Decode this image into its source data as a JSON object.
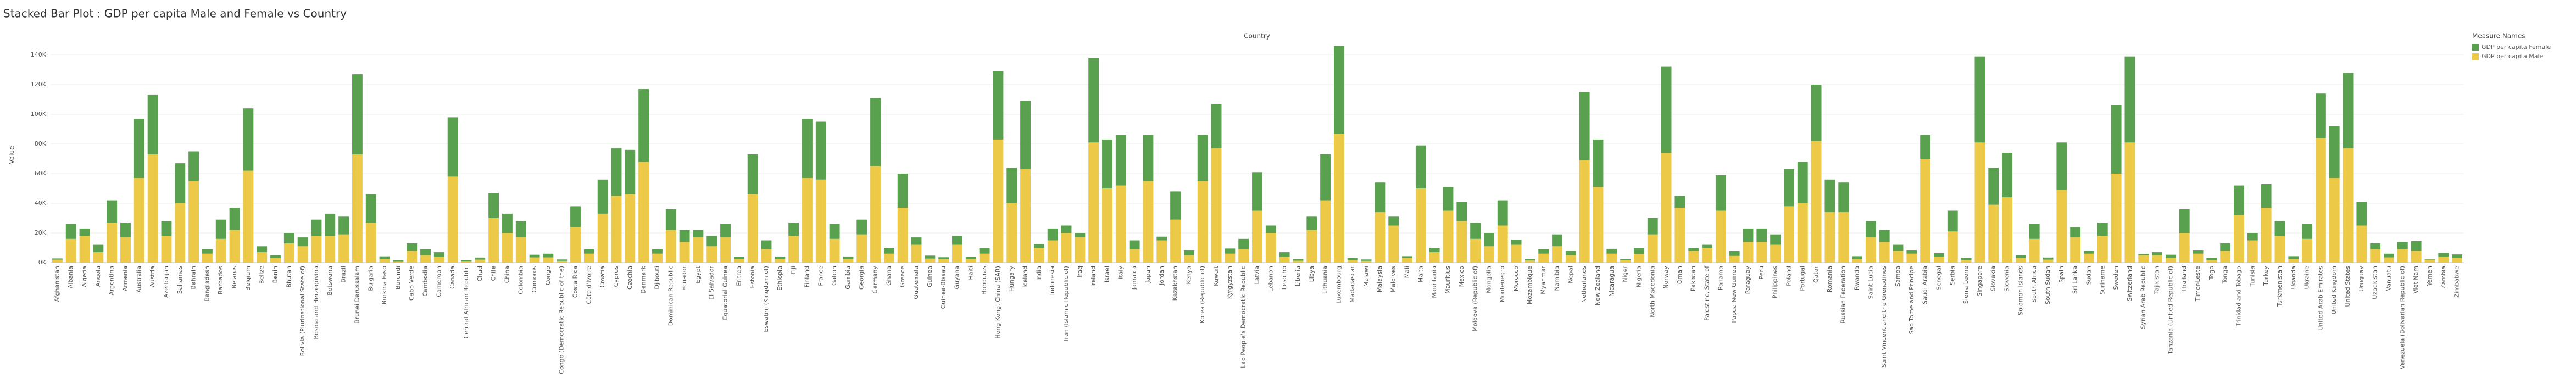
{
  "chart_data": {
    "type": "stacked_bar",
    "title": "Stacked Bar Plot :  GDP per capita Male and Female vs Country",
    "x_header": "Country",
    "y_label": "Value",
    "legend_title": "Measure Names",
    "legend": "right",
    "categories": [
      "Afghanistan",
      "Albania",
      "Algeria",
      "Angola",
      "Argentina",
      "Armenia",
      "Australia",
      "Austria",
      "Azerbaijan",
      "Bahamas",
      "Bahrain",
      "Bangladesh",
      "Barbados",
      "Belarus",
      "Belgium",
      "Belize",
      "Benin",
      "Bhutan",
      "Bolivia (Plurinational State of)",
      "Bosnia and Herzegovina",
      "Botswana",
      "Brazil",
      "Brunei Darussalam",
      "Bulgaria",
      "Burkina Faso",
      "Burundi",
      "Cabo Verde",
      "Cambodia",
      "Cameroon",
      "Canada",
      "Central African Republic",
      "Chad",
      "Chile",
      "China",
      "Colombia",
      "Comoros",
      "Congo",
      "Congo (Democratic Republic of the)",
      "Costa Rica",
      "Côte d'Ivoire",
      "Croatia",
      "Cyprus",
      "Czechia",
      "Denmark",
      "Djibouti",
      "Dominican Republic",
      "Ecuador",
      "Egypt",
      "El Salvador",
      "Equatorial Guinea",
      "Eritrea",
      "Estonia",
      "Eswatini (Kingdom of)",
      "Ethiopia",
      "Fiji",
      "Finland",
      "France",
      "Gabon",
      "Gambia",
      "Georgia",
      "Germany",
      "Ghana",
      "Greece",
      "Guatemala",
      "Guinea",
      "Guinea-Bissau",
      "Guyana",
      "Haiti",
      "Honduras",
      "Hong Kong, China (SAR)",
      "Hungary",
      "Iceland",
      "India",
      "Indonesia",
      "Iran (Islamic Republic of)",
      "Iraq",
      "Ireland",
      "Israel",
      "Italy",
      "Jamaica",
      "Japan",
      "Jordan",
      "Kazakhstan",
      "Kenya",
      "Korea (Republic of)",
      "Kuwait",
      "Kyrgyzstan",
      "Lao People's Democratic Republic",
      "Latvia",
      "Lebanon",
      "Lesotho",
      "Liberia",
      "Libya",
      "Lithuania",
      "Luxembourg",
      "Madagascar",
      "Malawi",
      "Malaysia",
      "Maldives",
      "Mali",
      "Malta",
      "Mauritania",
      "Mauritius",
      "Mexico",
      "Moldova (Republic of)",
      "Mongolia",
      "Montenegro",
      "Morocco",
      "Mozambique",
      "Myanmar",
      "Namibia",
      "Nepal",
      "Netherlands",
      "New Zealand",
      "Nicaragua",
      "Niger",
      "Nigeria",
      "North Macedonia",
      "Norway",
      "Oman",
      "Pakistan",
      "Palestine, State of",
      "Panama",
      "Papua New Guinea",
      "Paraguay",
      "Peru",
      "Philippines",
      "Poland",
      "Portugal",
      "Qatar",
      "Romania",
      "Russian Federation",
      "Rwanda",
      "Saint Lucia",
      "Saint Vincent and the Grenadines",
      "Samoa",
      "Sao Tome and Principe",
      "Saudi Arabia",
      "Senegal",
      "Serbia",
      "Sierra Leone",
      "Singapore",
      "Slovakia",
      "Slovenia",
      "Solomon Islands",
      "South Africa",
      "South Sudan",
      "Spain",
      "Sri Lanka",
      "Sudan",
      "Suriname",
      "Sweden",
      "Switzerland",
      "Syrian Arab Republic",
      "Tajikistan",
      "Tanzania (United Republic of)",
      "Thailand",
      "Timor-Leste",
      "Togo",
      "Tonga",
      "Trinidad and Tobago",
      "Tunisia",
      "Turkey",
      "Turkmenistan",
      "Uganda",
      "Ukraine",
      "United Arab Emirates",
      "United Kingdom",
      "United States",
      "Uruguay",
      "Uzbekistan",
      "Vanuatu",
      "Venezuela (Bolivarian Republic of)",
      "Viet Nam",
      "Yemen",
      "Zambia",
      "Zimbabwe"
    ],
    "series": [
      {
        "name": "GDP per capita Female",
        "color": "#59a14f",
        "values": [
          800,
          10000,
          5000,
          5000,
          15000,
          10000,
          40000,
          40000,
          10000,
          27000,
          20000,
          3000,
          13000,
          15000,
          42000,
          4000,
          2000,
          7000,
          6000,
          11000,
          15000,
          12000,
          54000,
          19000,
          1700,
          700,
          5000,
          4000,
          3000,
          40000,
          700,
          1400,
          17000,
          13000,
          11000,
          1800,
          2500,
          900,
          14000,
          3000,
          23000,
          32000,
          30000,
          49000,
          3000,
          14000,
          8000,
          5000,
          7000,
          9000,
          1500,
          27000,
          6000,
          1600,
          9000,
          40000,
          39000,
          10000,
          1700,
          10000,
          46000,
          4000,
          23000,
          5000,
          2000,
          1400,
          6000,
          1500,
          4000,
          46000,
          24000,
          46000,
          2500,
          8000,
          5000,
          3000,
          57000,
          33000,
          34000,
          6000,
          31000,
          2500,
          19000,
          3500,
          31000,
          30000,
          3500,
          7000,
          26000,
          5000,
          3000,
          1000,
          9000,
          31000,
          59000,
          1300,
          900,
          20000,
          6000,
          1300,
          29000,
          3000,
          16000,
          13000,
          11000,
          9000,
          17000,
          3500,
          1100,
          3000,
          8000,
          3000,
          46000,
          32000,
          3300,
          800,
          4000,
          11000,
          58000,
          8000,
          1700,
          2000,
          24000,
          3300,
          9000,
          9000,
          7000,
          25000,
          28000,
          38000,
          22000,
          20000,
          1900,
          11000,
          8000,
          4000,
          2500,
          16000,
          2300,
          14000,
          1500,
          58000,
          25000,
          30000,
          2000,
          10000,
          1400,
          32000,
          7000,
          2000,
          9000,
          46000,
          58000,
          800,
          2000,
          2300,
          16000,
          2500,
          1300,
          5000,
          20000,
          5000,
          16000,
          10000,
          1800,
          10000,
          30000,
          35000,
          51000,
          16000,
          4000,
          2500,
          5000,
          6500,
          500,
          2500,
          2500
        ]
      },
      {
        "name": "GDP per capita Male",
        "color": "#edc948",
        "values": [
          2000,
          16000,
          18000,
          7000,
          27000,
          17000,
          57000,
          73000,
          18000,
          40000,
          55000,
          6000,
          16000,
          22000,
          62000,
          7000,
          3000,
          13000,
          11000,
          18000,
          18000,
          19000,
          73000,
          27000,
          2500,
          900,
          8000,
          5000,
          4000,
          58000,
          1000,
          2000,
          30000,
          20000,
          17000,
          3500,
          3500,
          1200,
          24000,
          6000,
          33000,
          45000,
          46000,
          68000,
          6000,
          22000,
          14000,
          17000,
          11000,
          17000,
          2500,
          46000,
          9000,
          2500,
          18000,
          57000,
          56000,
          16000,
          2400,
          19000,
          65000,
          6000,
          37000,
          12000,
          2700,
          2200,
          12000,
          2300,
          6000,
          83000,
          40000,
          63000,
          10000,
          15000,
          20000,
          17000,
          81000,
          50000,
          52000,
          9000,
          55000,
          15000,
          29000,
          5000,
          55000,
          77000,
          6000,
          9000,
          35000,
          20000,
          4000,
          1300,
          22000,
          42000,
          87000,
          1700,
          1200,
          34000,
          25000,
          3000,
          50000,
          7000,
          35000,
          28000,
          16000,
          11000,
          25000,
          12000,
          1400,
          6000,
          11000,
          5000,
          69000,
          51000,
          6000,
          1500,
          5800,
          19000,
          74000,
          37000,
          8000,
          10000,
          35000,
          4500,
          14000,
          14000,
          12000,
          38000,
          40000,
          82000,
          34000,
          34000,
          2400,
          17000,
          14000,
          8000,
          6000,
          70000,
          4000,
          21000,
          1800,
          81000,
          39000,
          44000,
          3000,
          16000,
          2000,
          49000,
          17000,
          6000,
          18000,
          60000,
          81000,
          5000,
          5000,
          3000,
          20000,
          6000,
          1800,
          8000,
          32000,
          15000,
          37000,
          18000,
          2500,
          16000,
          84000,
          57000,
          77000,
          25000,
          9000,
          3500,
          9000,
          8000,
          2000,
          4000,
          3000
        ]
      }
    ],
    "ylim": [
      0,
      148000
    ],
    "yticks": [
      {
        "value": 0,
        "label": "0K"
      },
      {
        "value": 20000,
        "label": "20K"
      },
      {
        "value": 40000,
        "label": "40K"
      },
      {
        "value": 60000,
        "label": "60K"
      },
      {
        "value": 80000,
        "label": "80K"
      },
      {
        "value": 100000,
        "label": "100K"
      },
      {
        "value": 120000,
        "label": "120K"
      },
      {
        "value": 140000,
        "label": "140K"
      }
    ],
    "grid": true
  }
}
